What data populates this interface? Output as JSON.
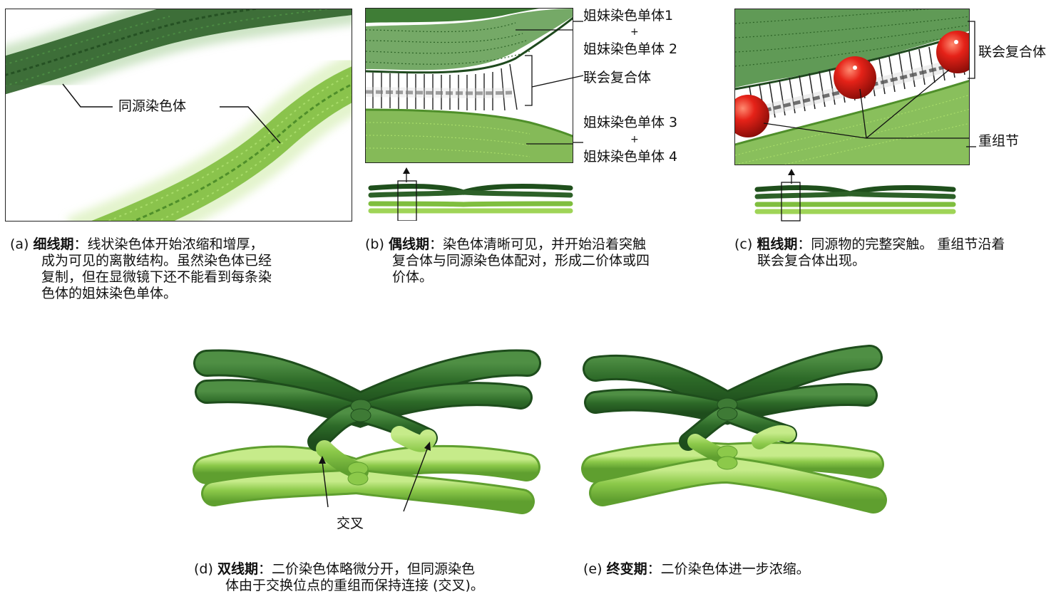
{
  "panel_a": {
    "label": "同源染色体",
    "caption": {
      "tag": "(a)",
      "term": "细线期",
      "line1": "：线状染色体开始浓缩和增厚，",
      "line2": "成为可见的离散结构。虽然染色体已经",
      "line3": "复制，但在显微镜下还不能看到每条染",
      "line4": "色体的姐妹染色单体。"
    }
  },
  "panel_b": {
    "sister1": "姐妹染色单体1",
    "plus_top": "+",
    "sister2": "姐妹染色单体 2",
    "complex": "联会复合体",
    "sister3": "姐妹染色单体 3",
    "plus_bottom": "+",
    "sister4": "姐妹染色单体 4",
    "caption": {
      "tag": "(b)",
      "term": "偶线期",
      "line1": "：染色体清晰可见，并开始沿着突触",
      "line2": "复合体与同源染色体配对，形成二价体或四",
      "line3": "价体。"
    }
  },
  "panel_c": {
    "complex": "联会复合体",
    "nodule": "重组节",
    "caption": {
      "tag": "(c)",
      "term": "粗线期",
      "line1": "：同源物的完整突触。 重组节沿着",
      "line2": "联会复合体出现。"
    }
  },
  "panel_d": {
    "chiasma": "交叉",
    "caption": {
      "tag": "(d)",
      "term": "双线期",
      "line1": "：二价染色体略微分开，但同源染色",
      "line2": "体由于交换位点的重组而保持连接 (交叉)。"
    }
  },
  "panel_e": {
    "caption": {
      "tag": "(e)",
      "term": "终变期",
      "line1": "：二价染色体进一步浓缩。"
    }
  },
  "colors": {
    "dark_green": "#2f6b2a",
    "mid_green": "#4f8f3a",
    "light_green": "#8ccc4a",
    "nodule_red": "#e0201a"
  }
}
